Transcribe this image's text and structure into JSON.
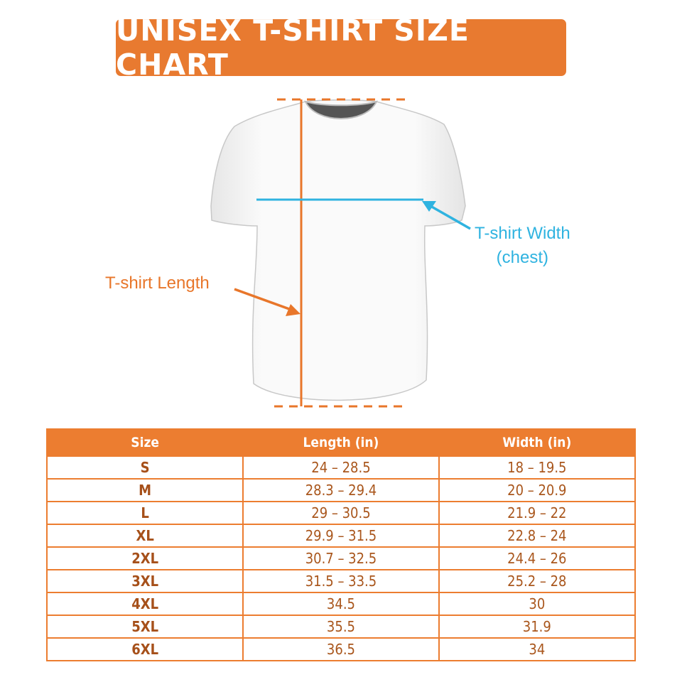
{
  "title": "UNISEX T-SHIRT SIZE CHART",
  "labels": {
    "length": "T-shirt Length",
    "width_line1": "T-shirt Width",
    "width_line2": "(chest)"
  },
  "colors": {
    "accent_orange": "#e87a30",
    "measure_blue": "#2fb3e0",
    "text_brown": "#a9561c"
  },
  "chart_data": {
    "type": "table",
    "columns": [
      "Size",
      "Length (in)",
      "Width (in)"
    ],
    "rows": [
      [
        "S",
        "24 – 28.5",
        "18 – 19.5"
      ],
      [
        "M",
        "28.3 – 29.4",
        "20 – 20.9"
      ],
      [
        "L",
        "29 – 30.5",
        "21.9 – 22"
      ],
      [
        "XL",
        "29.9 – 31.5",
        "22.8 – 24"
      ],
      [
        "2XL",
        "30.7 – 32.5",
        "24.4 – 26"
      ],
      [
        "3XL",
        "31.5 – 33.5",
        "25.2 – 28"
      ],
      [
        "4XL",
        "34.5",
        "30"
      ],
      [
        "5XL",
        "35.5",
        "31.9"
      ],
      [
        "6XL",
        "36.5",
        "34"
      ]
    ]
  }
}
